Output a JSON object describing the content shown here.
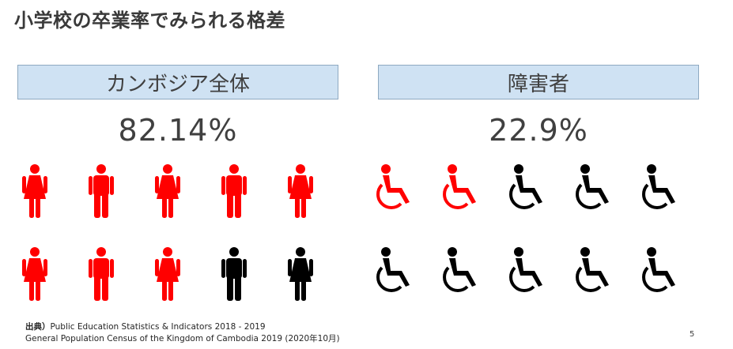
{
  "title": "小学校の卒業率でみられる格差",
  "panels": {
    "left": {
      "header": "カンボジア全体",
      "rate": "82.14%"
    },
    "right": {
      "header": "障害者",
      "rate": "22.9%"
    }
  },
  "icons": {
    "left": [
      {
        "type": "female-icon",
        "color": "#ff0000"
      },
      {
        "type": "male-icon",
        "color": "#ff0000"
      },
      {
        "type": "female-icon",
        "color": "#ff0000"
      },
      {
        "type": "male-icon",
        "color": "#ff0000"
      },
      {
        "type": "female-icon",
        "color": "#ff0000"
      },
      {
        "type": "female-icon",
        "color": "#ff0000"
      },
      {
        "type": "male-icon",
        "color": "#ff0000"
      },
      {
        "type": "female-icon",
        "color": "#ff0000"
      },
      {
        "type": "male-icon",
        "color": "#000000"
      },
      {
        "type": "female-icon",
        "color": "#000000"
      }
    ],
    "right": [
      {
        "type": "wheelchair-icon",
        "color": "#ff0000"
      },
      {
        "type": "wheelchair-icon",
        "color": "#ff0000"
      },
      {
        "type": "wheelchair-icon",
        "color": "#000000"
      },
      {
        "type": "wheelchair-icon",
        "color": "#000000"
      },
      {
        "type": "wheelchair-icon",
        "color": "#000000"
      },
      {
        "type": "wheelchair-icon",
        "color": "#000000"
      },
      {
        "type": "wheelchair-icon",
        "color": "#000000"
      },
      {
        "type": "wheelchair-icon",
        "color": "#000000"
      },
      {
        "type": "wheelchair-icon",
        "color": "#000000"
      },
      {
        "type": "wheelchair-icon",
        "color": "#000000"
      }
    ]
  },
  "footer": {
    "source_label": "出典）",
    "line1": "Public Education Statistics & Indicators 2018 - 2019",
    "line2": "General Population Census of the Kingdom of Cambodia 2019 (2020年10月)"
  },
  "page_number": "5"
}
